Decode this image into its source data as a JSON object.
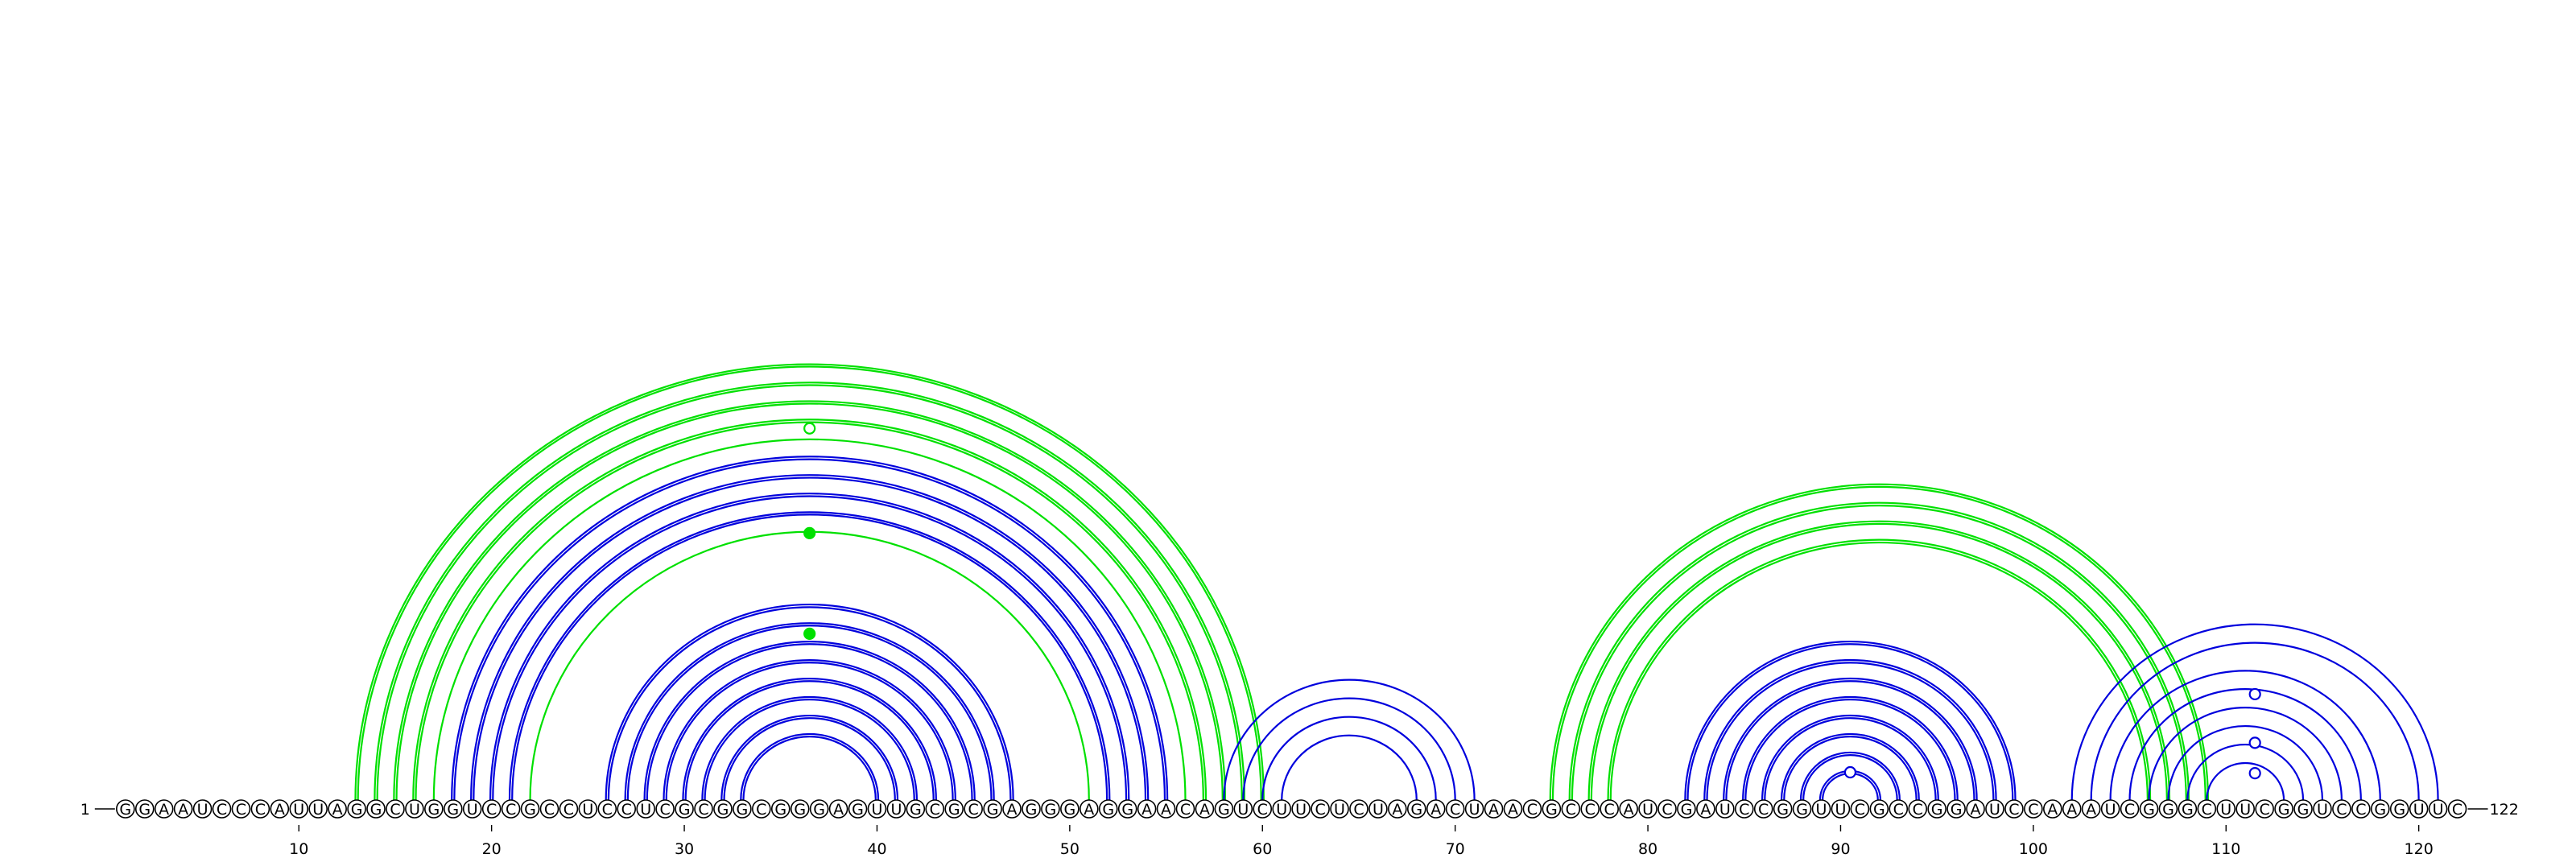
{
  "colors": {
    "helix_blue": "#0000dd",
    "helix_green": "#00e000",
    "background": "#ffffff",
    "text": "#000000"
  },
  "sequence": "GGAAUCCCAUUAGGCUGGUCCGCCUCCUCGCGGCGGGAGUUGCGCGAGGGAGGAACAGUCUUCUCUAGACUAACGCCCAUCGAUCCGGUUCGCCGGAUCCAAAUCGGGCUUCGGUCCGGUUC",
  "start_label": "1",
  "end_label": "122",
  "ticks": [
    10,
    20,
    30,
    40,
    50,
    60,
    70,
    80,
    90,
    100,
    110,
    120
  ],
  "helices": [
    {
      "i": 13,
      "j": 60,
      "length": 1,
      "color": "green",
      "lines": 2
    },
    {
      "i": 14,
      "j": 59,
      "length": 1,
      "color": "green",
      "lines": 2
    },
    {
      "i": 15,
      "j": 58,
      "length": 1,
      "color": "green",
      "lines": 2
    },
    {
      "i": 16,
      "j": 57,
      "length": 1,
      "color": "green",
      "lines": 2
    },
    {
      "i": 17,
      "j": 56,
      "length": 1,
      "color": "green",
      "lines": 1
    },
    {
      "i": 18,
      "j": 55,
      "length": 1,
      "color": "blue",
      "lines": 2
    },
    {
      "i": 19,
      "j": 54,
      "length": 1,
      "color": "blue",
      "lines": 2
    },
    {
      "i": 20,
      "j": 53,
      "length": 1,
      "color": "blue",
      "lines": 2
    },
    {
      "i": 21,
      "j": 52,
      "length": 1,
      "color": "blue",
      "lines": 2
    },
    {
      "i": 22,
      "j": 51,
      "length": 1,
      "color": "green",
      "lines": 1
    },
    {
      "i": 26,
      "j": 47,
      "length": 8,
      "color": "blue",
      "lines": 2
    },
    {
      "i": 58,
      "j": 71,
      "length": 4,
      "color": "blue",
      "lines": 1
    },
    {
      "i": 75,
      "j": 109,
      "length": 4,
      "color": "green",
      "lines": 2
    },
    {
      "i": 82,
      "j": 99,
      "length": 8,
      "color": "blue",
      "lines": 2
    },
    {
      "i": 102,
      "j": 121,
      "length": 2,
      "color": "blue",
      "lines": 1
    },
    {
      "i": 104,
      "j": 118,
      "length": 6,
      "color": "blue",
      "lines": 1
    }
  ],
  "markers": [
    {
      "between_i": 13,
      "between_j": 60,
      "pos": 36.5,
      "level": 0.855,
      "style": "open",
      "color": "green"
    },
    {
      "between_i": 17,
      "between_j": 56,
      "pos": 36.5,
      "level": 0.74,
      "style": "filled",
      "color": "green"
    },
    {
      "between_i": 22,
      "between_j": 51,
      "pos": 36.5,
      "level": 0.62,
      "style": "filled",
      "color": "green"
    },
    {
      "between_i": 89,
      "between_j": 92,
      "pos": 90.5,
      "level": 1,
      "style": "open",
      "color": "blue"
    },
    {
      "between_i": 104,
      "between_j": 118,
      "pos": 111.5,
      "level": 0.82,
      "style": "open",
      "color": "blue"
    },
    {
      "between_i": 107,
      "between_j": 115,
      "pos": 111.5,
      "level": 0.78,
      "style": "open",
      "color": "blue"
    },
    {
      "between_i": 109,
      "between_j": 113,
      "pos": 111.5,
      "level": 0.75,
      "style": "open",
      "color": "blue"
    }
  ]
}
